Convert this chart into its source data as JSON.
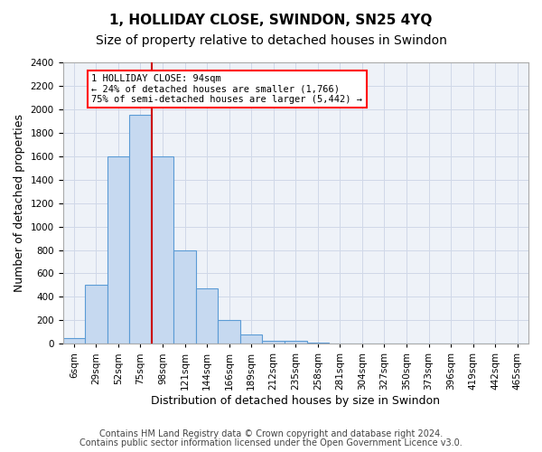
{
  "title": "1, HOLLIDAY CLOSE, SWINDON, SN25 4YQ",
  "subtitle": "Size of property relative to detached houses in Swindon",
  "xlabel": "Distribution of detached houses by size in Swindon",
  "ylabel": "Number of detached properties",
  "footer_line1": "Contains HM Land Registry data © Crown copyright and database right 2024.",
  "footer_line2": "Contains public sector information licensed under the Open Government Licence v3.0.",
  "bin_labels": [
    "6sqm",
    "29sqm",
    "52sqm",
    "75sqm",
    "98sqm",
    "121sqm",
    "144sqm",
    "166sqm",
    "189sqm",
    "212sqm",
    "235sqm",
    "258sqm",
    "281sqm",
    "304sqm",
    "327sqm",
    "350sqm",
    "373sqm",
    "396sqm",
    "419sqm",
    "442sqm",
    "465sqm"
  ],
  "bar_values": [
    50,
    500,
    1600,
    1950,
    1600,
    800,
    470,
    200,
    80,
    25,
    22,
    10,
    5,
    0,
    0,
    0,
    0,
    0,
    0,
    0,
    0
  ],
  "bar_color": "#c6d9f0",
  "bar_edge_color": "#5b9bd5",
  "annotation_line1": "1 HOLLIDAY CLOSE: 94sqm",
  "annotation_line2": "← 24% of detached houses are smaller (1,766)",
  "annotation_line3": "75% of semi-detached houses are larger (5,442) →",
  "annotation_box_color": "white",
  "annotation_box_edge_color": "red",
  "red_line_color": "#cc0000",
  "red_line_x": 3.5,
  "ylim": [
    0,
    2400
  ],
  "yticks": [
    0,
    200,
    400,
    600,
    800,
    1000,
    1200,
    1400,
    1600,
    1800,
    2000,
    2200,
    2400
  ],
  "grid_color": "#d0d8e8",
  "background_color": "#eef2f8",
  "title_fontsize": 11,
  "subtitle_fontsize": 10,
  "xlabel_fontsize": 9,
  "ylabel_fontsize": 9,
  "tick_fontsize": 7.5,
  "footer_fontsize": 7
}
